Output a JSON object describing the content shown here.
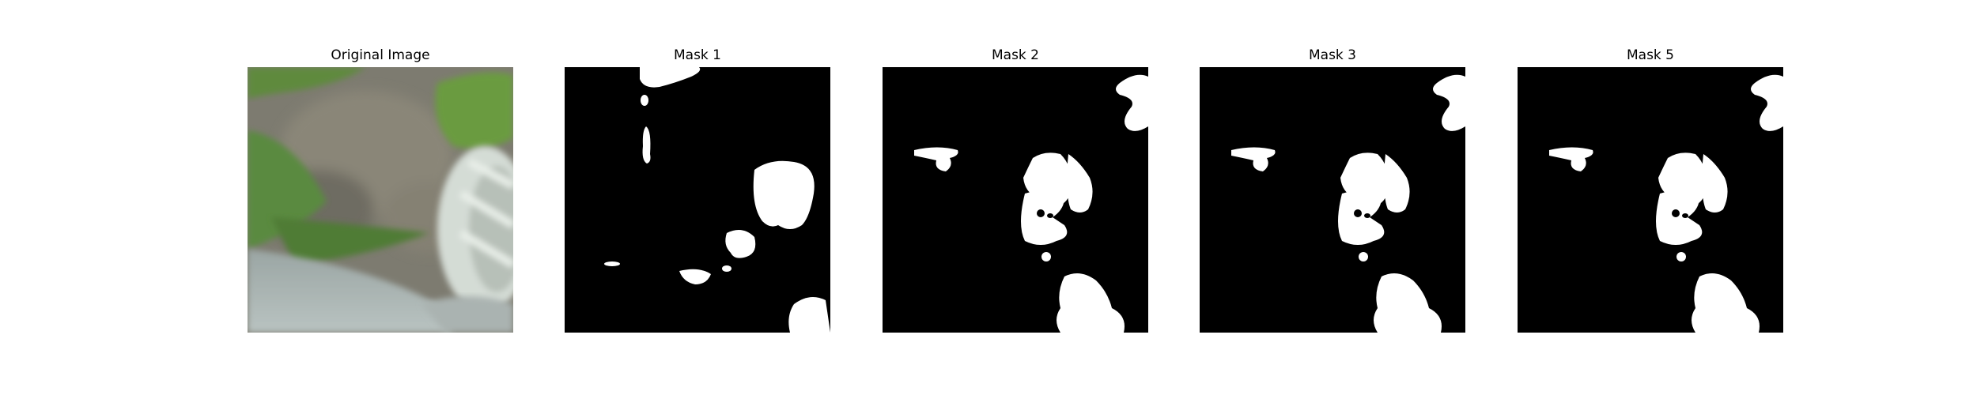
{
  "panels": [
    {
      "title": "Original Image",
      "kind": "photo"
    },
    {
      "title": "Mask 1",
      "kind": "mask"
    },
    {
      "title": "Mask 2",
      "kind": "mask"
    },
    {
      "title": "Mask 3",
      "kind": "mask"
    },
    {
      "title": "Mask 5",
      "kind": "mask"
    }
  ],
  "colors": {
    "background": "#ffffff",
    "mask_bg": "#000000",
    "mask_fg": "#ffffff",
    "leaf_green": "#5f8a3e",
    "dark_leaf": "#476a34",
    "wall_gray": "#7b7a70",
    "floor_gray": "#a9b2b0",
    "plastic_white": "#d9e0da"
  }
}
